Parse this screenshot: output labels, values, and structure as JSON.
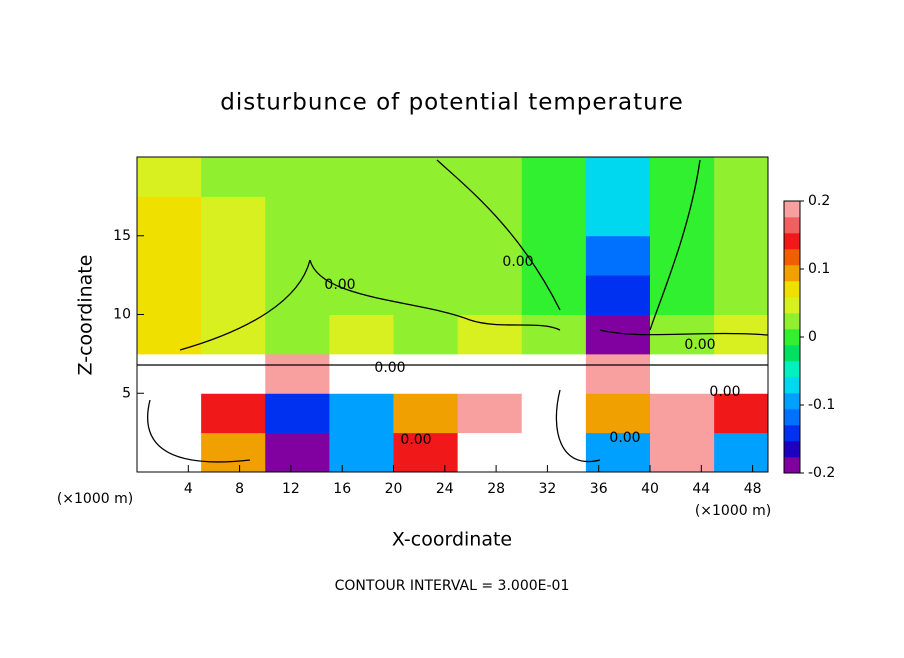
{
  "chart_data": {
    "type": "heatmap",
    "title": "disturbunce of potential temperature",
    "x_label": "X-coordinate",
    "y_label": "Z-coordinate",
    "x_unit": "(×1000 m)",
    "footnote": "CONTOUR INTERVAL = 3.000E-01",
    "contour_labels": [
      "0.00",
      "0.00",
      "0.00",
      "0.00",
      "0.00",
      "0.00",
      "0.00"
    ],
    "xlim": [
      0,
      49.2
    ],
    "ylim": [
      0,
      20
    ],
    "xticks": [
      4,
      8,
      12,
      16,
      20,
      24,
      28,
      32,
      36,
      40,
      44,
      48
    ],
    "yticks": [
      5,
      10,
      15
    ],
    "x": [
      2.5,
      7.5,
      12.5,
      17.5,
      22.5,
      27.5,
      32.5,
      37.5,
      42.5,
      47.5
    ],
    "y": [
      1.25,
      3.75,
      6.25,
      8.75,
      11.25,
      13.75,
      16.25,
      18.75
    ],
    "z": [
      [
        0.3,
        0.1,
        -0.18,
        -0.1,
        0.15,
        0.3,
        0.3,
        -0.1,
        0.2,
        -0.1
      ],
      [
        0.3,
        0.15,
        -0.15,
        -0.1,
        0.1,
        0.2,
        0.3,
        0.1,
        0.2,
        0.15
      ],
      [
        0.3,
        0.25,
        0.2,
        0.3,
        0.3,
        0.25,
        0.3,
        0.2,
        0.3,
        0.3
      ],
      [
        0.08,
        0.05,
        0.03,
        0.04,
        0.03,
        0.05,
        0.03,
        -0.18,
        0.03,
        0.04
      ],
      [
        0.08,
        0.04,
        0.03,
        0.03,
        0.03,
        0.02,
        -0.01,
        -0.15,
        0.01,
        0.03
      ],
      [
        0.07,
        0.05,
        0.03,
        0.03,
        0.03,
        0.02,
        0.0,
        -0.11,
        0.01,
        0.03
      ],
      [
        0.06,
        0.04,
        0.02,
        0.02,
        0.02,
        0.02,
        0.0,
        -0.08,
        0.01,
        0.03
      ],
      [
        0.05,
        0.03,
        0.02,
        0.02,
        0.02,
        0.02,
        0.01,
        -0.06,
        0.01,
        0.03
      ]
    ],
    "clim": [
      -0.2,
      0.2
    ],
    "cticks": [
      -0.2,
      -0.1,
      0,
      0.1,
      0.2
    ],
    "colors": [
      "#8000a0",
      "#2000c0",
      "#0030f0",
      "#0070ff",
      "#00a0ff",
      "#00d8f0",
      "#00f0c0",
      "#00e060",
      "#30f030",
      "#90f030",
      "#d8f020",
      "#f0e000",
      "#f0a000",
      "#f06000",
      "#f01818",
      "#f06060",
      "#f8a0a0"
    ]
  }
}
